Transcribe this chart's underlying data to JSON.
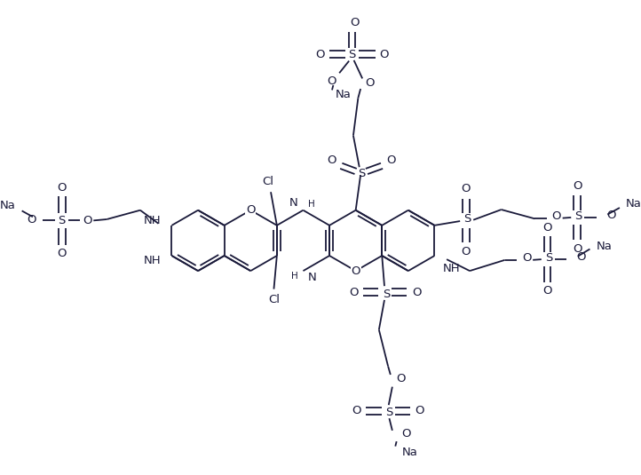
{
  "bg_color": "#ffffff",
  "line_color": "#1a1a3a",
  "text_color": "#1a1a3a",
  "line_width": 1.3,
  "font_size": 8.5,
  "figsize": [
    7.22,
    5.35
  ],
  "dpi": 100,
  "xlim": [
    0,
    10
  ],
  "ylim": [
    0,
    7.4
  ]
}
